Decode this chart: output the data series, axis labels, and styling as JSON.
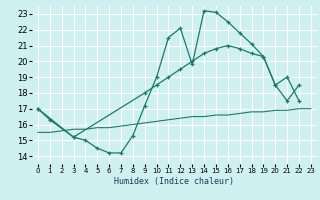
{
  "xlabel": "Humidex (Indice chaleur)",
  "background_color": "#cff0f0",
  "line_color": "#1a7a6e",
  "grid_color": "#ffffff",
  "xlim": [
    -0.5,
    23.5
  ],
  "ylim": [
    13.5,
    23.5
  ],
  "xticks": [
    0,
    1,
    2,
    3,
    4,
    5,
    6,
    7,
    8,
    9,
    10,
    11,
    12,
    13,
    14,
    15,
    16,
    17,
    18,
    19,
    20,
    21,
    22,
    23
  ],
  "yticks": [
    14,
    15,
    16,
    17,
    18,
    19,
    20,
    21,
    22,
    23
  ],
  "curve1_x": [
    0,
    1,
    3,
    4,
    5,
    6,
    7,
    8,
    9,
    10,
    11,
    12,
    13,
    14,
    15,
    16,
    17,
    18,
    19,
    20,
    21,
    22
  ],
  "curve1_y": [
    17.0,
    16.3,
    15.2,
    15.0,
    14.5,
    14.2,
    14.2,
    15.3,
    17.2,
    19.0,
    21.5,
    22.1,
    19.8,
    23.2,
    23.1,
    22.5,
    21.8,
    21.1,
    20.3,
    18.5,
    19.0,
    17.5
  ],
  "curve2_x": [
    0,
    3,
    9,
    10,
    11,
    12,
    13,
    14,
    15,
    16,
    17,
    18,
    19,
    20,
    21,
    22
  ],
  "curve2_y": [
    17.0,
    15.2,
    18.0,
    18.5,
    19.0,
    19.5,
    20.0,
    20.5,
    20.8,
    21.0,
    20.8,
    20.5,
    20.3,
    18.5,
    17.5,
    18.5
  ],
  "curve3_x": [
    0,
    1,
    2,
    3,
    4,
    5,
    6,
    7,
    8,
    9,
    10,
    11,
    12,
    13,
    14,
    15,
    16,
    17,
    18,
    19,
    20,
    21,
    22,
    23
  ],
  "curve3_y": [
    15.5,
    15.5,
    15.6,
    15.7,
    15.7,
    15.8,
    15.8,
    15.9,
    16.0,
    16.1,
    16.2,
    16.3,
    16.4,
    16.5,
    16.5,
    16.6,
    16.6,
    16.7,
    16.8,
    16.8,
    16.9,
    16.9,
    17.0,
    17.0
  ]
}
